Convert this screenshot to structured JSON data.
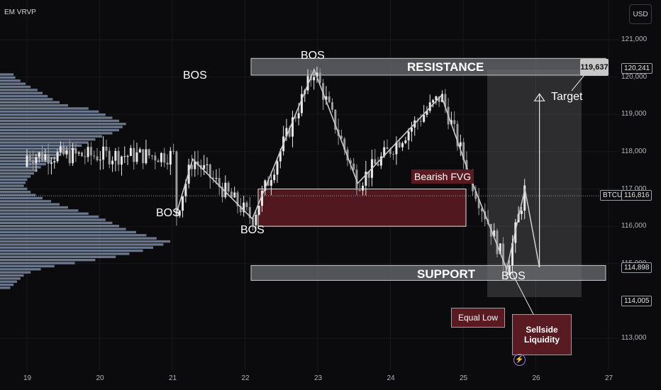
{
  "header": {
    "indicator": "EM VRVP",
    "currency": "USD"
  },
  "chart_data": {
    "type": "candlestick",
    "symbol": "BTCUSD",
    "current_price": "116,816",
    "ylim": [
      112400,
      121600
    ],
    "xlim": [
      18.7,
      27.3
    ],
    "price_ticks": [
      "121,000",
      "120,000",
      "119,000",
      "118,000",
      "117,000",
      "116,000",
      "115,000",
      "113,000"
    ],
    "time_ticks": [
      "19",
      "20",
      "21",
      "22",
      "23",
      "24",
      "25",
      "26",
      "27"
    ],
    "price_tags": [
      "120,241",
      "114,898",
      "114,005"
    ],
    "target_price": "119,637",
    "zones": {
      "resistance": {
        "label": "RESISTANCE",
        "from": 120050,
        "to": 120500
      },
      "support": {
        "label": "SUPPORT",
        "from": 114550,
        "to": 114950
      },
      "bearish_fvg": {
        "label": "Bearish FVG",
        "from": 116000,
        "to": 117000
      }
    },
    "annotations": {
      "bos": "BOS",
      "target": "Target",
      "equal_low": "Equal Low",
      "sellside_liquidity": "Sellside Liquidity"
    },
    "structure_path": [
      {
        "x": 21.05,
        "y": 116300
      },
      {
        "x": 21.28,
        "y": 117800
      },
      {
        "x": 22.1,
        "y": 116200
      },
      {
        "x": 22.95,
        "y": 120200
      },
      {
        "x": 23.55,
        "y": 117150
      },
      {
        "x": 24.7,
        "y": 119500
      },
      {
        "x": 25.1,
        "y": 117300
      },
      {
        "x": 25.6,
        "y": 114850
      },
      {
        "x": 25.85,
        "y": 117000
      },
      {
        "x": 26.05,
        "y": 114900
      }
    ],
    "volume_profile": [
      0.08,
      0.09,
      0.12,
      0.15,
      0.18,
      0.22,
      0.25,
      0.28,
      0.31,
      0.35,
      0.4,
      0.52,
      0.58,
      0.62,
      0.66,
      0.7,
      0.74,
      0.72,
      0.7,
      0.66,
      0.6,
      0.56,
      0.52,
      0.48,
      0.44,
      0.4,
      0.36,
      0.33,
      0.3,
      0.27,
      0.24,
      0.22,
      0.2,
      0.18,
      0.16,
      0.15,
      0.14,
      0.16,
      0.18,
      0.21,
      0.25,
      0.3,
      0.35,
      0.4,
      0.46,
      0.52,
      0.58,
      0.62,
      0.66,
      0.7,
      0.74,
      0.8,
      0.86,
      0.92,
      1.0,
      0.96,
      0.9,
      0.84,
      0.76,
      0.68,
      0.56,
      0.44,
      0.32,
      0.24,
      0.18,
      0.14,
      0.12,
      0.1,
      0.08,
      0.06
    ]
  }
}
